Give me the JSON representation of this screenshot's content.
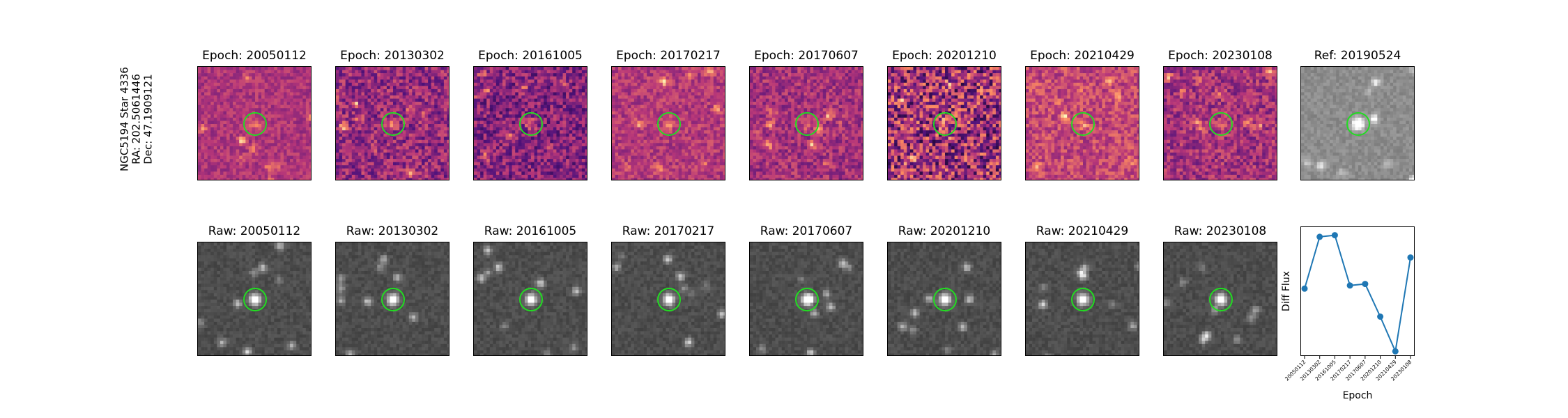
{
  "object": {
    "name": "NGC5194 Star 4336",
    "ra": "RA: 202.5061446",
    "dec": "Dec: 47.1909121"
  },
  "colors": {
    "circle": "#22dd22",
    "line": "#1f77b4"
  },
  "diff_panels": [
    {
      "title": "Epoch: 20050112",
      "colormap": "magma",
      "level": 0.48,
      "noise": 0.1
    },
    {
      "title": "Epoch: 20130302",
      "colormap": "magma",
      "level": 0.42,
      "noise": 0.18
    },
    {
      "title": "Epoch: 20161005",
      "colormap": "magma",
      "level": 0.38,
      "noise": 0.18
    },
    {
      "title": "Epoch: 20170217",
      "colormap": "magma",
      "level": 0.5,
      "noise": 0.12
    },
    {
      "title": "Epoch: 20170607",
      "colormap": "magma",
      "level": 0.46,
      "noise": 0.14
    },
    {
      "title": "Epoch: 20201210",
      "colormap": "magma",
      "level": 0.45,
      "noise": 0.32
    },
    {
      "title": "Epoch: 20210429",
      "colormap": "magma",
      "level": 0.55,
      "noise": 0.14
    },
    {
      "title": "Epoch: 20230108",
      "colormap": "magma",
      "level": 0.46,
      "noise": 0.16
    },
    {
      "title": "Ref: 20190524",
      "colormap": "gray",
      "level": 0.55,
      "noise": 0.06
    }
  ],
  "raw_panels": [
    {
      "title": "Raw: 20050112"
    },
    {
      "title": "Raw: 20130302"
    },
    {
      "title": "Raw: 20161005"
    },
    {
      "title": "Raw: 20170217"
    },
    {
      "title": "Raw: 20170607"
    },
    {
      "title": "Raw: 20201210"
    },
    {
      "title": "Raw: 20210429"
    },
    {
      "title": "Raw: 20230108"
    }
  ],
  "chart_data": {
    "type": "line",
    "x": [
      "20050112",
      "20130302",
      "20161005",
      "20170217",
      "20170607",
      "20201210",
      "20210429",
      "20230108"
    ],
    "series": [
      {
        "values": [
          0.0,
          1.0,
          1.03,
          0.06,
          0.09,
          -0.54,
          -1.21,
          0.6
        ]
      }
    ],
    "xlabel": "Epoch",
    "ylabel": "Diff Flux",
    "ylim": [
      -1.3,
      1.2
    ],
    "markers": true,
    "grid": false
  }
}
